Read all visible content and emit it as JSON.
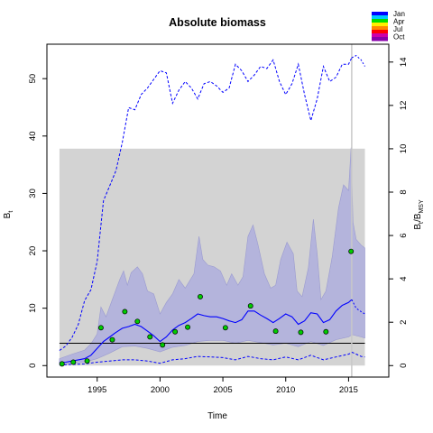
{
  "chart_data": {
    "type": "line",
    "title": "Absolute biomass",
    "xlabel": "Time",
    "ylabel_left": "B",
    "ylabel_left_sub": "t",
    "ylabel_right": "B",
    "ylabel_right_sub": "t",
    "ylabel_right_slash": "/B",
    "ylabel_right_sub2": "MSY",
    "xlim": [
      1991.0,
      2018.2
    ],
    "ylim_left": [
      -2.0,
      56.0
    ],
    "ylim_right": [
      -0.5294,
      14.8235
    ],
    "x_ticks": [
      1995,
      2000,
      2005,
      2010,
      2015
    ],
    "y_ticks_left": [
      0,
      10,
      20,
      30,
      40,
      50
    ],
    "y_ticks_right": [
      0,
      2,
      4,
      6,
      8,
      10,
      12,
      14
    ],
    "grey_box": {
      "x0": 1992.0,
      "x1": 2016.3,
      "y0": 0.0,
      "y1": 37.8
    },
    "reference_line": {
      "y": 3.9
    },
    "vertical_marker": {
      "x": 2015.25
    },
    "legend": {
      "placement": "top-right",
      "labels": [
        "Jan",
        "Apr",
        "Jul",
        "Oct"
      ],
      "colors": [
        "#0000ff",
        "#00c8ff",
        "#00dd00",
        "#ffee00",
        "#ff8800",
        "#ff0000",
        "#cc00aa",
        "#8800aa"
      ]
    },
    "colors": {
      "band": "#b4b4dc",
      "median": "#0000ff",
      "point": "#00cc00",
      "reference": "#000000",
      "box": "#d3d3d3"
    },
    "series": [
      {
        "name": "",
        "role": "upper-ci",
        "x": [
          1992.0,
          1993.0,
          1994.0,
          1994.5,
          1995.0,
          1995.3,
          1995.7,
          1996.2,
          1996.8,
          1997.1,
          1997.4,
          1997.7,
          1998.2,
          1998.6,
          1999.0,
          1999.5,
          2000.0,
          2000.5,
          2001.0,
          2001.5,
          2002.0,
          2002.7,
          2003.1,
          2003.4,
          2003.8,
          2004.3,
          2004.8,
          2005.3,
          2005.7,
          2006.2,
          2006.6,
          2007.0,
          2007.4,
          2007.8,
          2008.3,
          2008.8,
          2009.2,
          2009.6,
          2010.1,
          2010.6,
          2010.9,
          2011.3,
          2011.8,
          2012.2,
          2012.5,
          2012.8,
          2013.2,
          2013.7,
          2014.2,
          2014.6,
          2015.0,
          2015.2,
          2015.35,
          2015.6,
          2016.0,
          2016.3
        ],
        "values": [
          1.2,
          2.0,
          2.7,
          3.8,
          5.5,
          10.2,
          8.5,
          11.5,
          15.0,
          16.5,
          14.0,
          16.2,
          17.2,
          16.0,
          13.0,
          12.5,
          9.0,
          11.0,
          12.5,
          15.0,
          13.5,
          16.0,
          22.5,
          18.5,
          17.5,
          17.2,
          16.5,
          14.0,
          16.0,
          14.0,
          15.5,
          22.5,
          24.5,
          21.0,
          16.0,
          13.5,
          14.0,
          18.5,
          21.5,
          19.5,
          13.0,
          12.0,
          17.0,
          25.5,
          19.5,
          11.5,
          13.0,
          19.0,
          27.5,
          31.5,
          30.5,
          38.0,
          25.0,
          22.0,
          21.0,
          20.5
        ]
      },
      {
        "name": "",
        "role": "lower-ci",
        "x": [
          1992.0,
          1993.0,
          1994.0,
          1995.0,
          1996.0,
          1997.0,
          1998.0,
          1999.0,
          2000.0,
          2001.0,
          2002.0,
          2003.0,
          2004.0,
          2005.0,
          2006.0,
          2007.0,
          2008.0,
          2009.0,
          2010.0,
          2011.0,
          2012.0,
          2013.0,
          2014.0,
          2015.0,
          2015.3,
          2016.0,
          2016.3
        ],
        "values": [
          0.2,
          0.4,
          0.6,
          1.2,
          2.2,
          3.3,
          3.4,
          3.0,
          2.4,
          3.2,
          3.5,
          4.2,
          4.4,
          4.4,
          3.9,
          4.4,
          4.0,
          3.6,
          3.9,
          3.3,
          4.2,
          3.5,
          4.5,
          5.0,
          5.4,
          5.0,
          4.8
        ]
      },
      {
        "name": "",
        "role": "median",
        "x": [
          1992.0,
          1992.5,
          1993.0,
          1993.5,
          1994.0,
          1994.5,
          1995.0,
          1995.5,
          1996.0,
          1996.5,
          1997.0,
          1997.5,
          1998.0,
          1998.5,
          1999.0,
          1999.5,
          2000.0,
          2000.5,
          2001.0,
          2001.5,
          2002.0,
          2002.5,
          2003.0,
          2003.5,
          2004.0,
          2004.5,
          2005.0,
          2005.5,
          2006.0,
          2006.5,
          2007.0,
          2007.5,
          2008.0,
          2008.5,
          2009.0,
          2009.5,
          2010.0,
          2010.5,
          2011.0,
          2011.5,
          2012.0,
          2012.5,
          2013.0,
          2013.5,
          2014.0,
          2014.5,
          2015.0,
          2015.25
        ],
        "values": [
          0.5,
          0.6,
          0.8,
          1.0,
          1.2,
          1.8,
          3.0,
          4.2,
          5.0,
          5.8,
          6.5,
          6.8,
          7.2,
          6.8,
          6.0,
          5.2,
          4.2,
          5.0,
          6.2,
          7.0,
          7.5,
          8.2,
          9.0,
          8.7,
          8.5,
          8.5,
          8.2,
          7.8,
          7.5,
          8.0,
          9.5,
          9.5,
          8.8,
          8.2,
          7.5,
          8.2,
          9.0,
          8.5,
          7.2,
          7.8,
          9.2,
          9.0,
          7.5,
          8.0,
          9.5,
          10.5,
          11.0,
          11.5
        ]
      },
      {
        "name": "",
        "role": "median-forecast",
        "x": [
          2015.25,
          2015.6,
          2016.0,
          2016.3
        ],
        "values": [
          11.5,
          10.0,
          9.4,
          9.0
        ]
      },
      {
        "name": "",
        "role": "median-bbmsy",
        "axis": "right",
        "x": [
          1992.0,
          1992.5,
          1993.0,
          1993.5,
          1994.0,
          1994.5,
          1995.0,
          1995.5,
          1996.0,
          1996.5,
          1997.0,
          1997.5,
          1998.0,
          1998.5,
          1999.0,
          1999.5,
          2000.0,
          2000.5,
          2001.0,
          2001.5,
          2002.0,
          2002.5,
          2003.0,
          2003.5,
          2004.0,
          2004.5,
          2005.0,
          2005.5,
          2006.0,
          2006.5,
          2007.0,
          2007.5,
          2008.0,
          2008.5,
          2009.0,
          2009.5,
          2010.0,
          2010.5,
          2011.0,
          2011.5,
          2012.0,
          2012.5,
          2013.0,
          2013.5,
          2014.0,
          2014.5,
          2015.0,
          2015.25
        ],
        "values": [
          0.7,
          0.9,
          1.3,
          1.9,
          3.0,
          3.5,
          4.8,
          7.6,
          8.3,
          9.0,
          10.3,
          11.9,
          11.8,
          12.5,
          12.8,
          13.2,
          13.6,
          13.5,
          12.1,
          12.7,
          13.1,
          12.8,
          12.3,
          13.0,
          13.1,
          12.9,
          12.6,
          12.8,
          13.9,
          13.6,
          13.1,
          13.4,
          13.8,
          13.7,
          14.1,
          13.1,
          12.5,
          13.0,
          13.9,
          12.5,
          11.3,
          12.3,
          13.8,
          13.1,
          13.3,
          13.9,
          13.9,
          14.2
        ]
      },
      {
        "name": "",
        "role": "median-bbmsy-forecast",
        "axis": "right",
        "x": [
          2015.25,
          2015.6,
          2016.0,
          2016.3
        ],
        "values": [
          14.2,
          14.3,
          14.1,
          13.8
        ]
      },
      {
        "name": "",
        "role": "lower-ci-line",
        "x": [
          1992.0,
          1993.0,
          1994.0,
          1995.0,
          1996.0,
          1997.0,
          1998.0,
          1999.0,
          2000.0,
          2001.0,
          2002.0,
          2003.0,
          2004.0,
          2005.0,
          2006.0,
          2007.0,
          2008.0,
          2009.0,
          2010.0,
          2011.0,
          2012.0,
          2013.0,
          2014.0,
          2015.0,
          2015.3,
          2016.0,
          2016.3
        ],
        "values": [
          0.1,
          0.2,
          0.3,
          0.6,
          0.8,
          1.0,
          1.0,
          0.8,
          0.4,
          1.0,
          1.2,
          1.6,
          1.5,
          1.4,
          1.0,
          1.6,
          1.2,
          1.0,
          1.5,
          1.0,
          1.8,
          1.0,
          1.5,
          2.0,
          2.3,
          1.6,
          1.5
        ]
      },
      {
        "name": "",
        "role": "observations",
        "x": [
          1992.2,
          1993.1,
          1994.2,
          1995.3,
          1996.2,
          1997.2,
          1998.2,
          1999.2,
          2000.2,
          2001.2,
          2002.2,
          2003.2,
          2005.2,
          2007.2,
          2009.2,
          2011.2,
          2013.2,
          2015.2
        ],
        "values": [
          0.3,
          0.6,
          0.8,
          6.6,
          4.5,
          9.4,
          7.7,
          5.0,
          3.6,
          5.9,
          6.7,
          12.0,
          6.6,
          10.4,
          6.0,
          5.8,
          5.9,
          19.9
        ]
      }
    ]
  }
}
